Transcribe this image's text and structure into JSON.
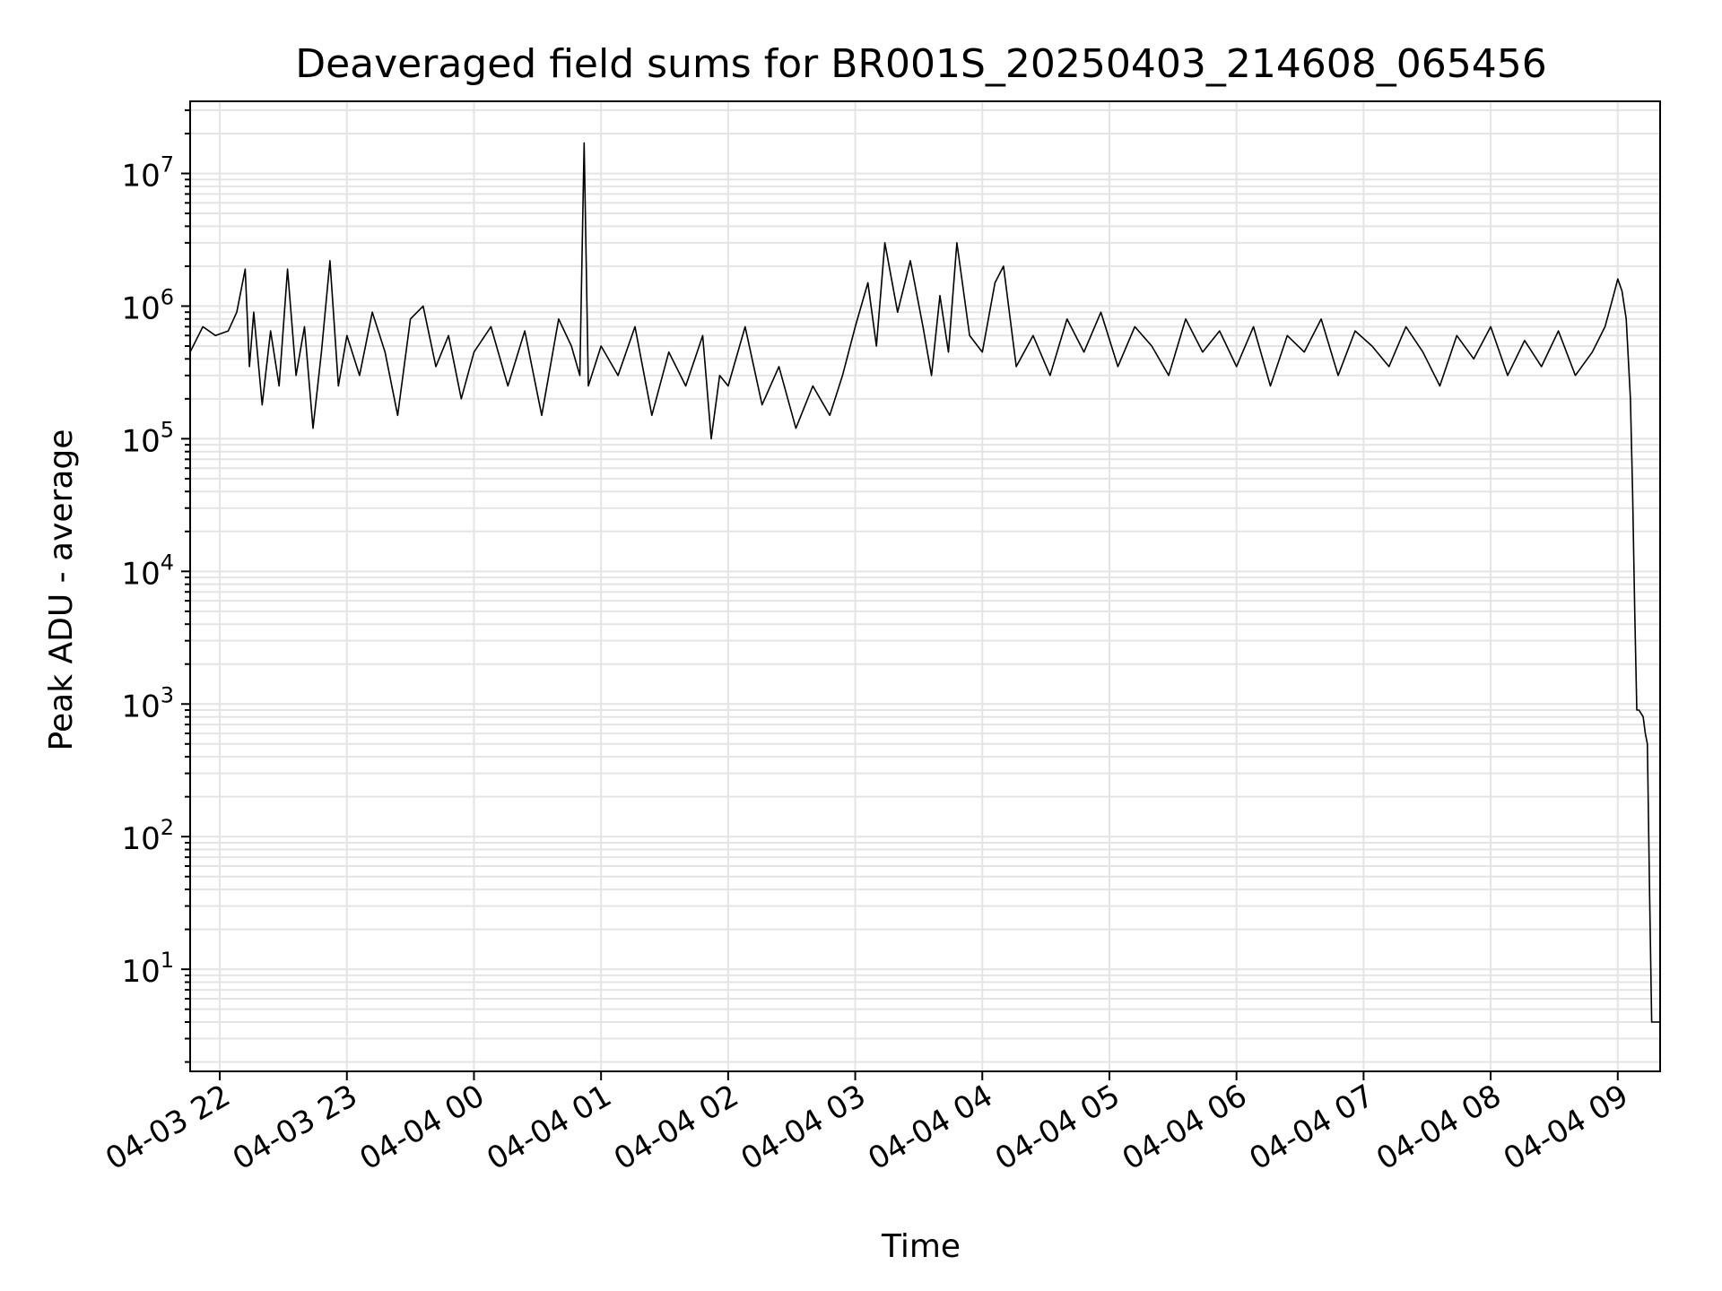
{
  "chart_data": {
    "type": "line",
    "title": "Deaveraged field sums for BR001S_20250403_214608_065456",
    "xlabel": "Time",
    "ylabel": "Peak ADU - average",
    "y_scale": "log",
    "ylim": [
      1.7,
      35000000
    ],
    "xlim": [
      "2025-04-03 21:46",
      "2025-04-04 09:20"
    ],
    "grid": true,
    "line_color": "#000000",
    "x_ticks": [
      {
        "label": "04-03 22",
        "value": "2025-04-03 22:00"
      },
      {
        "label": "04-03 23",
        "value": "2025-04-03 23:00"
      },
      {
        "label": "04-04 00",
        "value": "2025-04-04 00:00"
      },
      {
        "label": "04-04 01",
        "value": "2025-04-04 01:00"
      },
      {
        "label": "04-04 02",
        "value": "2025-04-04 02:00"
      },
      {
        "label": "04-04 03",
        "value": "2025-04-04 03:00"
      },
      {
        "label": "04-04 04",
        "value": "2025-04-04 04:00"
      },
      {
        "label": "04-04 05",
        "value": "2025-04-04 05:00"
      },
      {
        "label": "04-04 06",
        "value": "2025-04-04 06:00"
      },
      {
        "label": "04-04 07",
        "value": "2025-04-04 07:00"
      },
      {
        "label": "04-04 08",
        "value": "2025-04-04 08:00"
      },
      {
        "label": "04-04 09",
        "value": "2025-04-04 09:00"
      }
    ],
    "y_ticks": [
      {
        "base": "10",
        "exp": "1",
        "value": 10
      },
      {
        "base": "10",
        "exp": "2",
        "value": 100
      },
      {
        "base": "10",
        "exp": "3",
        "value": 1000
      },
      {
        "base": "10",
        "exp": "4",
        "value": 10000
      },
      {
        "base": "10",
        "exp": "5",
        "value": 100000
      },
      {
        "base": "10",
        "exp": "6",
        "value": 1000000
      },
      {
        "base": "10",
        "exp": "7",
        "value": 10000000
      }
    ],
    "series": [
      {
        "x": [
          "2025-04-03 21:46",
          "2025-04-03 21:52",
          "2025-04-03 21:58",
          "2025-04-03 22:04",
          "2025-04-03 22:08",
          "2025-04-03 22:12",
          "2025-04-03 22:14",
          "2025-04-03 22:16",
          "2025-04-03 22:20",
          "2025-04-03 22:24",
          "2025-04-03 22:28",
          "2025-04-03 22:32",
          "2025-04-03 22:36",
          "2025-04-03 22:40",
          "2025-04-03 22:44",
          "2025-04-03 22:48",
          "2025-04-03 22:52",
          "2025-04-03 22:56",
          "2025-04-03 23:00",
          "2025-04-03 23:06",
          "2025-04-03 23:12",
          "2025-04-03 23:18",
          "2025-04-03 23:24",
          "2025-04-03 23:30",
          "2025-04-03 23:36",
          "2025-04-03 23:42",
          "2025-04-03 23:48",
          "2025-04-03 23:54",
          "2025-04-04 00:00",
          "2025-04-04 00:08",
          "2025-04-04 00:16",
          "2025-04-04 00:24",
          "2025-04-04 00:32",
          "2025-04-04 00:40",
          "2025-04-04 00:46",
          "2025-04-04 00:50",
          "2025-04-04 00:52",
          "2025-04-04 00:54",
          "2025-04-04 01:00",
          "2025-04-04 01:08",
          "2025-04-04 01:16",
          "2025-04-04 01:24",
          "2025-04-04 01:32",
          "2025-04-04 01:40",
          "2025-04-04 01:48",
          "2025-04-04 01:52",
          "2025-04-04 01:56",
          "2025-04-04 02:00",
          "2025-04-04 02:08",
          "2025-04-04 02:16",
          "2025-04-04 02:24",
          "2025-04-04 02:32",
          "2025-04-04 02:40",
          "2025-04-04 02:48",
          "2025-04-04 02:54",
          "2025-04-04 03:00",
          "2025-04-04 03:06",
          "2025-04-04 03:10",
          "2025-04-04 03:14",
          "2025-04-04 03:20",
          "2025-04-04 03:26",
          "2025-04-04 03:32",
          "2025-04-04 03:36",
          "2025-04-04 03:40",
          "2025-04-04 03:44",
          "2025-04-04 03:48",
          "2025-04-04 03:54",
          "2025-04-04 04:00",
          "2025-04-04 04:06",
          "2025-04-04 04:10",
          "2025-04-04 04:16",
          "2025-04-04 04:24",
          "2025-04-04 04:32",
          "2025-04-04 04:40",
          "2025-04-04 04:48",
          "2025-04-04 04:56",
          "2025-04-04 05:04",
          "2025-04-04 05:12",
          "2025-04-04 05:20",
          "2025-04-04 05:28",
          "2025-04-04 05:36",
          "2025-04-04 05:44",
          "2025-04-04 05:52",
          "2025-04-04 06:00",
          "2025-04-04 06:08",
          "2025-04-04 06:16",
          "2025-04-04 06:24",
          "2025-04-04 06:32",
          "2025-04-04 06:40",
          "2025-04-04 06:48",
          "2025-04-04 06:56",
          "2025-04-04 07:04",
          "2025-04-04 07:12",
          "2025-04-04 07:20",
          "2025-04-04 07:28",
          "2025-04-04 07:36",
          "2025-04-04 07:44",
          "2025-04-04 07:52",
          "2025-04-04 08:00",
          "2025-04-04 08:08",
          "2025-04-04 08:16",
          "2025-04-04 08:24",
          "2025-04-04 08:32",
          "2025-04-04 08:40",
          "2025-04-04 08:48",
          "2025-04-04 08:54",
          "2025-04-04 08:58",
          "2025-04-04 09:00",
          "2025-04-04 09:02",
          "2025-04-04 09:04",
          "2025-04-04 09:06",
          "2025-04-04 09:07",
          "2025-04-04 09:08",
          "2025-04-04 09:09",
          "2025-04-04 09:10",
          "2025-04-04 09:11",
          "2025-04-04 09:12",
          "2025-04-04 09:13",
          "2025-04-04 09:14",
          "2025-04-04 09:15",
          "2025-04-04 09:16",
          "2025-04-04 09:17",
          "2025-04-04 09:18",
          "2025-04-04 09:20"
        ],
        "y": [
          450000,
          700000,
          600000,
          650000,
          900000,
          1900000,
          350000,
          900000,
          180000,
          650000,
          250000,
          1900000,
          300000,
          700000,
          120000,
          450000,
          2200000,
          250000,
          600000,
          300000,
          900000,
          450000,
          150000,
          800000,
          1000000,
          350000,
          600000,
          200000,
          450000,
          700000,
          250000,
          650000,
          150000,
          800000,
          500000,
          300000,
          17000000,
          250000,
          500000,
          300000,
          700000,
          150000,
          450000,
          250000,
          600000,
          100000,
          300000,
          250000,
          700000,
          180000,
          350000,
          120000,
          250000,
          150000,
          300000,
          700000,
          1500000,
          500000,
          3000000,
          900000,
          2200000,
          700000,
          300000,
          1200000,
          450000,
          3000000,
          600000,
          450000,
          1500000,
          2000000,
          350000,
          600000,
          300000,
          800000,
          450000,
          900000,
          350000,
          700000,
          500000,
          300000,
          800000,
          450000,
          650000,
          350000,
          700000,
          250000,
          600000,
          450000,
          800000,
          300000,
          650000,
          500000,
          350000,
          700000,
          450000,
          250000,
          600000,
          400000,
          700000,
          300000,
          550000,
          350000,
          650000,
          300000,
          450000,
          700000,
          1200000,
          1600000,
          1300000,
          800000,
          200000,
          40000,
          5000,
          900,
          900,
          850,
          800,
          600,
          500,
          40,
          4,
          4,
          4,
          4
        ]
      }
    ]
  }
}
